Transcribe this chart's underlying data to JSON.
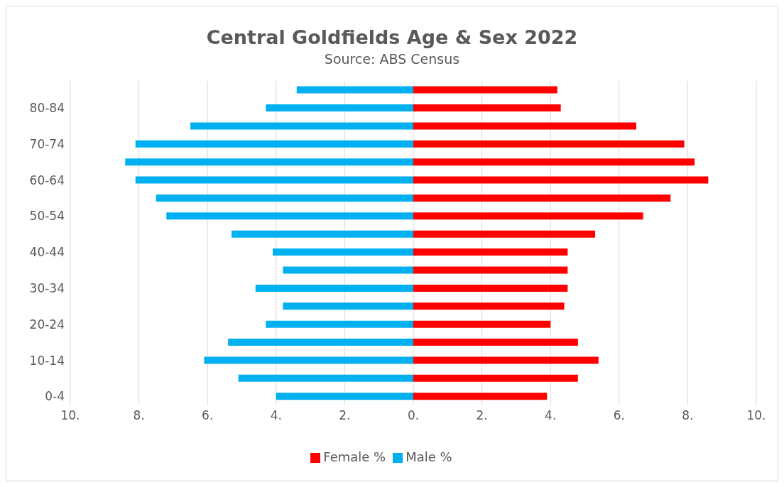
{
  "chart_data": {
    "type": "bar",
    "orientation": "horizontal",
    "stacked": true,
    "title": "Central Goldfields Age & Sex 2022",
    "subtitle": "Source: ABS Census",
    "categories": [
      null,
      "80-84",
      null,
      "70-74",
      null,
      "60-64",
      null,
      "50-54",
      null,
      "40-44",
      null,
      "30-34",
      null,
      "20-24",
      null,
      "10-14",
      null,
      "0-4"
    ],
    "series": [
      {
        "name": "Female %",
        "color": "#ff0000",
        "values": [
          4.2,
          4.3,
          6.5,
          7.9,
          8.2,
          8.6,
          7.5,
          6.7,
          5.3,
          4.5,
          4.5,
          4.5,
          4.4,
          4.0,
          4.8,
          5.4,
          4.8,
          3.9
        ]
      },
      {
        "name": "Male %",
        "color": "#00b0f0",
        "values": [
          -3.4,
          -4.3,
          -6.5,
          -8.1,
          -8.4,
          -8.1,
          -7.5,
          -7.2,
          -5.3,
          -4.1,
          -3.8,
          -4.6,
          -3.8,
          -4.3,
          -5.4,
          -6.1,
          -5.1,
          -4.0
        ]
      }
    ],
    "xlim": [
      -10,
      10
    ],
    "xticks": [
      {
        "value": -10,
        "label": "10."
      },
      {
        "value": -8,
        "label": "8."
      },
      {
        "value": -6,
        "label": "6."
      },
      {
        "value": -4,
        "label": "4."
      },
      {
        "value": -2,
        "label": "2."
      },
      {
        "value": 0,
        "label": "0."
      },
      {
        "value": 2,
        "label": "2."
      },
      {
        "value": 4,
        "label": "4."
      },
      {
        "value": 6,
        "label": "6."
      },
      {
        "value": 8,
        "label": "8."
      },
      {
        "value": 10,
        "label": "10."
      }
    ],
    "grid": "x",
    "legend": "bottom"
  }
}
